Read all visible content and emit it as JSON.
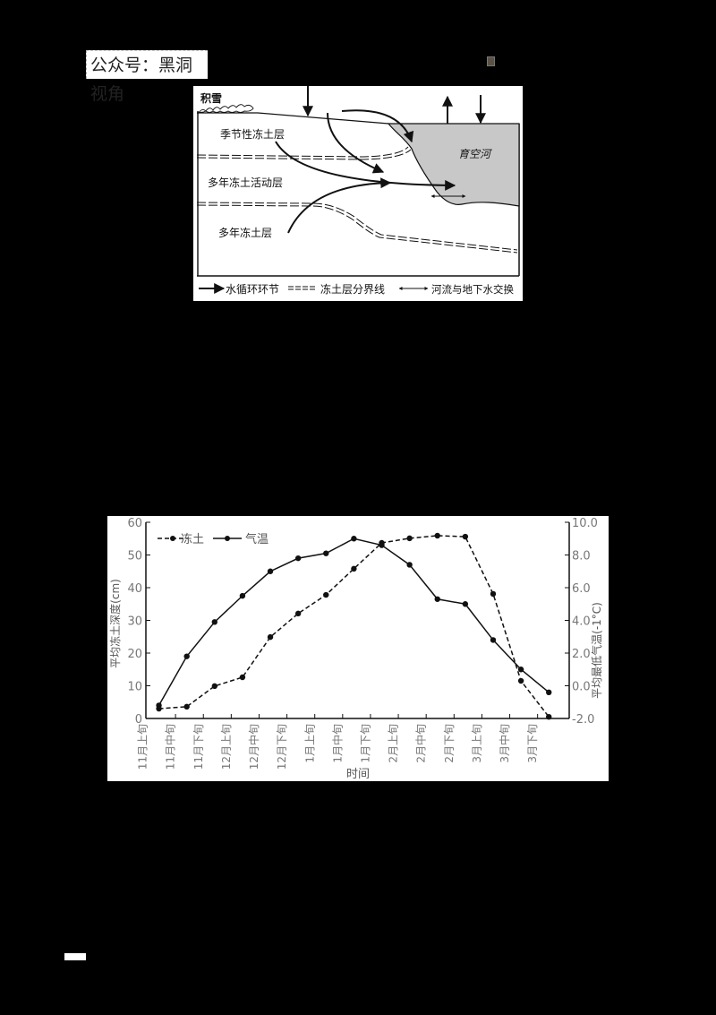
{
  "watermark": {
    "text": "公众号：黑洞视角"
  },
  "diagram": {
    "labels": {
      "snow": "积雪",
      "seasonal_frozen_layer": "季节性冻土层",
      "active_layer": "多年冻土活动层",
      "permafrost_layer": "多年冻土层",
      "river": "育空河"
    },
    "legend": [
      {
        "symbol": "solid-arrow",
        "label": "水循环环节"
      },
      {
        "symbol": "double-dashed-line",
        "label": "冻土层分界线"
      },
      {
        "symbol": "double-headed-arrow",
        "label": "河流与地下水交换"
      }
    ],
    "colors": {
      "river_fill": "#c8c8c8",
      "line": "#111111"
    }
  },
  "chart_data": {
    "type": "line",
    "title": "",
    "xlabel": "时间",
    "ylabel": "平均冻土深度(cm)",
    "y2label": "平均最低气温(-1°C)",
    "categories": [
      "11月上旬",
      "11月中旬",
      "11月下旬",
      "12月上旬",
      "12月中旬",
      "12月下旬",
      "1月上旬",
      "1月中旬",
      "1月下旬",
      "2月上旬",
      "2月中旬",
      "2月下旬",
      "3月上旬",
      "3月中旬",
      "3月下旬"
    ],
    "ylim": [
      0,
      60
    ],
    "yticks": [
      "0",
      "10",
      "20",
      "30",
      "40",
      "50",
      "60"
    ],
    "y2lim": [
      -2.0,
      10.0
    ],
    "y2ticks": [
      "-2.0",
      "0.0",
      "2.0",
      "4.0",
      "6.0",
      "8.0",
      "10.0"
    ],
    "legend_position": "upper-left",
    "grid": false,
    "series": [
      {
        "name": "冻土",
        "axis": "left",
        "style": "dashed",
        "values": [
          3.0,
          3.6,
          9.9,
          12.6,
          24.9,
          32.1,
          37.8,
          45.8,
          53.7,
          55.1,
          55.9,
          55.6,
          38.1,
          11.5,
          0.5
        ]
      },
      {
        "name": "气温",
        "axis": "right",
        "style": "solid",
        "values": [
          -1.2,
          1.8,
          3.9,
          5.5,
          7.0,
          7.8,
          8.1,
          9.0,
          8.6,
          7.4,
          5.3,
          5.0,
          2.8,
          1.0,
          -0.4
        ]
      }
    ]
  }
}
